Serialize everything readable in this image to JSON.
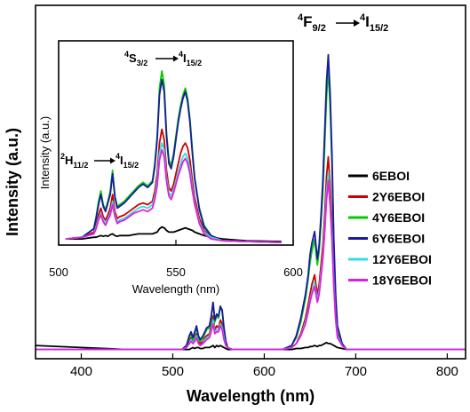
{
  "chart_data": [
    {
      "type": "line",
      "xlabel": "Wavelength (nm)",
      "ylabel": "Intensity (a.u.)",
      "xlim": [
        350,
        820
      ],
      "xticks": [
        "400",
        "500",
        "600",
        "700",
        "800"
      ],
      "legend_position": "right",
      "annotations": [
        {
          "id": "main_transition",
          "upper": "4",
          "state": "F",
          "sub": "9/2",
          "arrow": "→",
          "upper2": "4",
          "state2": "I",
          "sub2": "15/2"
        }
      ],
      "x": [
        350,
        400,
        450,
        490,
        500,
        510,
        515,
        518,
        520,
        522,
        524,
        526,
        528,
        530,
        533,
        535,
        537,
        540,
        542,
        544,
        546,
        548,
        550,
        552,
        554,
        556,
        558,
        560,
        565,
        570,
        600,
        620,
        630,
        635,
        640,
        645,
        648,
        650,
        652,
        655,
        658,
        660,
        662,
        664,
        666,
        668,
        670,
        672,
        674,
        676,
        678,
        680,
        685,
        690,
        700,
        720,
        760,
        800,
        820
      ],
      "series": [
        {
          "name": "6EBOI",
          "color": "#000000",
          "values": [
            0.04,
            0.03,
            0.02,
            0.02,
            0.02,
            0.02,
            0.02,
            0.02,
            0.025,
            0.03,
            0.025,
            0.03,
            0.03,
            0.025,
            0.025,
            0.03,
            0.03,
            0.03,
            0.035,
            0.04,
            0.03,
            0.04,
            0.035,
            0.04,
            0.035,
            0.03,
            0.025,
            0.02,
            0.02,
            0.02,
            0.02,
            0.02,
            0.02,
            0.025,
            0.025,
            0.03,
            0.03,
            0.035,
            0.035,
            0.04,
            0.035,
            0.04,
            0.04,
            0.045,
            0.05,
            0.055,
            0.05,
            0.05,
            0.045,
            0.04,
            0.035,
            0.03,
            0.025,
            0.02,
            0.02,
            0.02,
            0.02,
            0.02,
            0.02
          ]
        },
        {
          "name": "2Y6EBOI",
          "color": "#cc0000",
          "values": [
            0.02,
            0.02,
            0.02,
            0.02,
            0.02,
            0.02,
            0.03,
            0.06,
            0.08,
            0.06,
            0.08,
            0.1,
            0.06,
            0.05,
            0.06,
            0.08,
            0.09,
            0.1,
            0.14,
            0.19,
            0.12,
            0.14,
            0.13,
            0.17,
            0.15,
            0.09,
            0.05,
            0.03,
            0.02,
            0.02,
            0.02,
            0.02,
            0.03,
            0.05,
            0.1,
            0.18,
            0.25,
            0.3,
            0.35,
            0.4,
            0.3,
            0.35,
            0.45,
            0.55,
            0.7,
            0.9,
            1.0,
            0.85,
            0.65,
            0.4,
            0.2,
            0.1,
            0.04,
            0.02,
            0.02,
            0.02,
            0.02,
            0.02,
            0.02
          ]
        },
        {
          "name": "4Y6EBOI",
          "color": "#00cc00",
          "values": [
            0.02,
            0.02,
            0.02,
            0.02,
            0.02,
            0.02,
            0.04,
            0.08,
            0.1,
            0.07,
            0.1,
            0.13,
            0.08,
            0.06,
            0.08,
            0.1,
            0.12,
            0.13,
            0.18,
            0.26,
            0.16,
            0.19,
            0.18,
            0.24,
            0.21,
            0.12,
            0.06,
            0.03,
            0.02,
            0.02,
            0.02,
            0.02,
            0.04,
            0.08,
            0.16,
            0.28,
            0.38,
            0.46,
            0.52,
            0.58,
            0.45,
            0.52,
            0.66,
            0.82,
            1.05,
            1.3,
            1.45,
            1.25,
            0.95,
            0.55,
            0.28,
            0.13,
            0.05,
            0.02,
            0.02,
            0.02,
            0.02,
            0.02,
            0.02
          ]
        },
        {
          "name": "6Y6EBOI",
          "color": "#1a1aa0",
          "values": [
            0.02,
            0.02,
            0.02,
            0.02,
            0.02,
            0.02,
            0.04,
            0.09,
            0.11,
            0.08,
            0.11,
            0.14,
            0.09,
            0.07,
            0.09,
            0.11,
            0.13,
            0.14,
            0.19,
            0.26,
            0.17,
            0.2,
            0.19,
            0.24,
            0.22,
            0.13,
            0.06,
            0.03,
            0.02,
            0.02,
            0.02,
            0.02,
            0.04,
            0.09,
            0.18,
            0.3,
            0.4,
            0.5,
            0.56,
            0.62,
            0.48,
            0.55,
            0.7,
            0.88,
            1.12,
            1.38,
            1.52,
            1.32,
            1.0,
            0.58,
            0.3,
            0.14,
            0.05,
            0.02,
            0.02,
            0.02,
            0.02,
            0.02,
            0.02
          ]
        },
        {
          "name": "12Y6EBOI",
          "color": "#33dddd",
          "values": [
            0.02,
            0.02,
            0.02,
            0.02,
            0.02,
            0.02,
            0.03,
            0.05,
            0.07,
            0.05,
            0.07,
            0.09,
            0.05,
            0.04,
            0.05,
            0.07,
            0.08,
            0.09,
            0.12,
            0.17,
            0.11,
            0.12,
            0.12,
            0.15,
            0.13,
            0.08,
            0.04,
            0.03,
            0.02,
            0.02,
            0.02,
            0.02,
            0.03,
            0.05,
            0.09,
            0.16,
            0.22,
            0.27,
            0.31,
            0.36,
            0.27,
            0.32,
            0.41,
            0.5,
            0.64,
            0.82,
            0.92,
            0.78,
            0.6,
            0.36,
            0.18,
            0.09,
            0.04,
            0.02,
            0.02,
            0.02,
            0.02,
            0.02,
            0.02
          ]
        },
        {
          "name": "18Y6EBOI",
          "color": "#e01fe0",
          "values": [
            0.02,
            0.02,
            0.02,
            0.02,
            0.02,
            0.02,
            0.03,
            0.05,
            0.06,
            0.05,
            0.06,
            0.08,
            0.05,
            0.04,
            0.05,
            0.06,
            0.07,
            0.08,
            0.11,
            0.15,
            0.1,
            0.11,
            0.11,
            0.14,
            0.12,
            0.07,
            0.04,
            0.03,
            0.02,
            0.02,
            0.02,
            0.02,
            0.03,
            0.05,
            0.09,
            0.15,
            0.21,
            0.26,
            0.3,
            0.34,
            0.26,
            0.3,
            0.39,
            0.48,
            0.61,
            0.78,
            0.88,
            0.75,
            0.57,
            0.34,
            0.17,
            0.08,
            0.04,
            0.02,
            0.02,
            0.02,
            0.02,
            0.02,
            0.02
          ]
        }
      ]
    },
    {
      "type": "line",
      "xlabel": "Wavelength (nm)",
      "ylabel": "Intensity (a.u.)",
      "xlim": [
        500,
        600
      ],
      "xticks": [
        "500",
        "550",
        "600"
      ],
      "annotations": [
        {
          "id": "inset_t1",
          "upper": "4",
          "state": "S",
          "sub": "3/2",
          "arrow": "→",
          "upper2": "4",
          "state2": "I",
          "sub2": "15/2"
        },
        {
          "id": "inset_t2",
          "upper": "2",
          "state": "H",
          "sub": "11/2",
          "arrow": "→",
          "upper2": "4",
          "state2": "I",
          "sub2": "15/2"
        }
      ],
      "x": [
        503,
        510,
        515,
        516,
        517,
        518,
        519,
        520,
        521,
        522,
        523,
        524,
        525,
        526,
        528,
        530,
        532,
        534,
        536,
        538,
        540,
        541,
        542,
        543,
        544,
        545,
        546,
        547,
        548,
        549,
        550,
        551,
        552,
        553,
        554,
        555,
        556,
        557,
        558,
        560,
        562,
        565,
        570,
        580,
        595
      ],
      "series": [
        {
          "name": "6EBOI",
          "color": "#000000",
          "values": [
            0.02,
            0.02,
            0.03,
            0.03,
            0.035,
            0.04,
            0.035,
            0.04,
            0.035,
            0.045,
            0.05,
            0.04,
            0.035,
            0.04,
            0.04,
            0.04,
            0.045,
            0.05,
            0.05,
            0.05,
            0.05,
            0.055,
            0.06,
            0.08,
            0.09,
            0.085,
            0.07,
            0.06,
            0.06,
            0.06,
            0.065,
            0.07,
            0.075,
            0.08,
            0.085,
            0.08,
            0.075,
            0.07,
            0.06,
            0.05,
            0.04,
            0.03,
            0.02,
            0.01,
            0.005
          ]
        },
        {
          "name": "2Y6EBOI",
          "color": "#cc0000",
          "values": [
            0.02,
            0.03,
            0.06,
            0.1,
            0.16,
            0.2,
            0.15,
            0.13,
            0.16,
            0.2,
            0.28,
            0.18,
            0.14,
            0.15,
            0.16,
            0.18,
            0.2,
            0.22,
            0.23,
            0.22,
            0.24,
            0.3,
            0.4,
            0.58,
            0.66,
            0.6,
            0.42,
            0.32,
            0.3,
            0.34,
            0.4,
            0.46,
            0.52,
            0.56,
            0.58,
            0.55,
            0.48,
            0.36,
            0.26,
            0.14,
            0.07,
            0.03,
            0.01,
            0.005,
            0.0
          ]
        },
        {
          "name": "4Y6EBOI",
          "color": "#00cc00",
          "values": [
            0.02,
            0.03,
            0.08,
            0.15,
            0.24,
            0.3,
            0.22,
            0.19,
            0.24,
            0.3,
            0.42,
            0.27,
            0.21,
            0.22,
            0.24,
            0.27,
            0.3,
            0.33,
            0.35,
            0.33,
            0.36,
            0.46,
            0.62,
            0.9,
            1.0,
            0.92,
            0.64,
            0.48,
            0.45,
            0.52,
            0.62,
            0.72,
            0.8,
            0.86,
            0.9,
            0.84,
            0.72,
            0.54,
            0.38,
            0.2,
            0.1,
            0.04,
            0.01,
            0.005,
            0.0
          ]
        },
        {
          "name": "6Y6EBOI",
          "color": "#1a1aa0",
          "values": [
            0.02,
            0.03,
            0.08,
            0.14,
            0.22,
            0.28,
            0.21,
            0.18,
            0.23,
            0.28,
            0.4,
            0.26,
            0.2,
            0.21,
            0.23,
            0.26,
            0.29,
            0.32,
            0.34,
            0.32,
            0.35,
            0.44,
            0.6,
            0.86,
            0.95,
            0.88,
            0.62,
            0.46,
            0.43,
            0.5,
            0.6,
            0.7,
            0.78,
            0.84,
            0.88,
            0.82,
            0.7,
            0.52,
            0.37,
            0.19,
            0.09,
            0.04,
            0.01,
            0.005,
            0.0
          ]
        },
        {
          "name": "12Y6EBOI",
          "color": "#33dddd",
          "values": [
            0.02,
            0.03,
            0.05,
            0.09,
            0.14,
            0.17,
            0.13,
            0.11,
            0.14,
            0.17,
            0.24,
            0.16,
            0.12,
            0.13,
            0.14,
            0.16,
            0.18,
            0.2,
            0.21,
            0.2,
            0.22,
            0.27,
            0.36,
            0.52,
            0.58,
            0.54,
            0.38,
            0.29,
            0.27,
            0.31,
            0.36,
            0.41,
            0.46,
            0.5,
            0.52,
            0.49,
            0.43,
            0.32,
            0.23,
            0.12,
            0.06,
            0.03,
            0.01,
            0.005,
            0.0
          ]
        },
        {
          "name": "18Y6EBOI",
          "color": "#e01fe0",
          "values": [
            0.02,
            0.03,
            0.05,
            0.08,
            0.13,
            0.16,
            0.12,
            0.1,
            0.13,
            0.16,
            0.22,
            0.15,
            0.11,
            0.12,
            0.13,
            0.15,
            0.17,
            0.18,
            0.19,
            0.18,
            0.2,
            0.25,
            0.33,
            0.48,
            0.54,
            0.5,
            0.36,
            0.27,
            0.25,
            0.29,
            0.34,
            0.39,
            0.43,
            0.47,
            0.49,
            0.46,
            0.4,
            0.3,
            0.22,
            0.11,
            0.05,
            0.02,
            0.01,
            0.005,
            0.0
          ]
        }
      ]
    }
  ]
}
